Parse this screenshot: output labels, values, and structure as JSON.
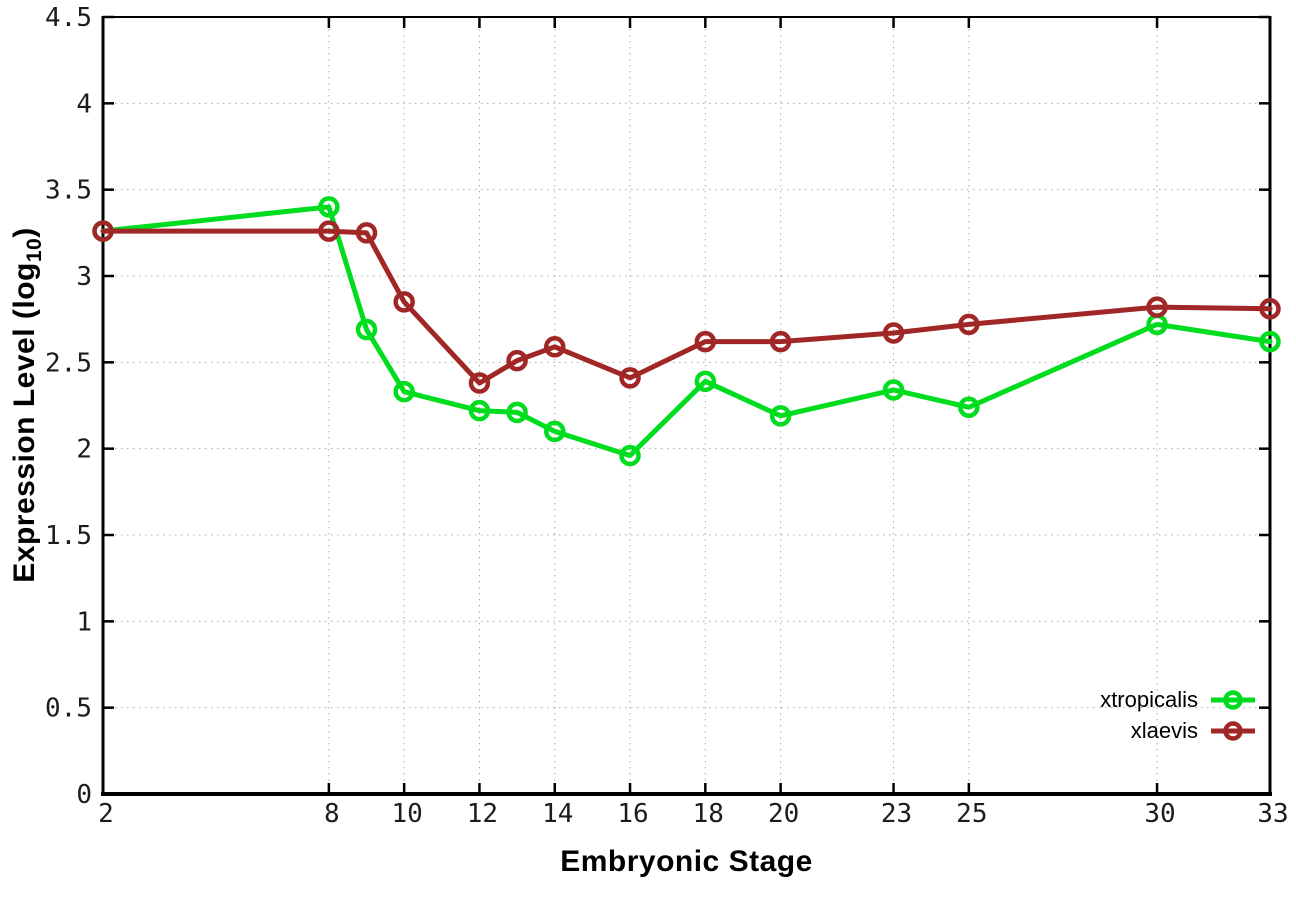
{
  "chart_data": {
    "type": "line",
    "title": "",
    "xlabel": "Embryonic Stage",
    "ylabel": {
      "pre": "Expression Level (log",
      "sub": "10",
      "post": ")"
    },
    "x": [
      2,
      8,
      9,
      10,
      12,
      13,
      14,
      16,
      18,
      20,
      23,
      25,
      30,
      33
    ],
    "series": [
      {
        "name": "xtropicalis",
        "color": "#00dc1e",
        "marker": "open-circle",
        "values": [
          3.26,
          3.4,
          2.69,
          2.33,
          2.22,
          2.21,
          2.1,
          1.96,
          2.39,
          2.19,
          2.34,
          2.24,
          2.72,
          2.62
        ]
      },
      {
        "name": "xlaevis",
        "color": "#a12626",
        "marker": "open-circle",
        "values": [
          3.26,
          3.26,
          3.25,
          2.85,
          2.38,
          2.51,
          2.59,
          2.41,
          2.62,
          2.62,
          2.67,
          2.72,
          2.82,
          2.81
        ]
      }
    ],
    "xticks": [
      2,
      8,
      10,
      12,
      14,
      16,
      18,
      20,
      23,
      25,
      30,
      33
    ],
    "yticks": [
      0,
      0.5,
      1,
      1.5,
      2,
      2.5,
      3,
      3.5,
      4,
      4.5
    ],
    "xlim": [
      2,
      33
    ],
    "ylim": [
      0,
      4.5
    ],
    "grid": true,
    "legend": {
      "position": "inside-bottom-right",
      "entries": [
        "xtropicalis",
        "xlaevis"
      ]
    }
  }
}
